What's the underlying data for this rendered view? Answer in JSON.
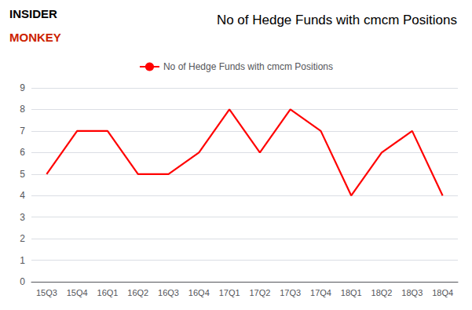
{
  "chart_data": {
    "type": "line",
    "title": "No of Hedge Funds with cmcm Positions",
    "categories": [
      "15Q3",
      "15Q4",
      "16Q1",
      "16Q2",
      "16Q3",
      "16Q4",
      "17Q1",
      "17Q2",
      "17Q3",
      "17Q4",
      "18Q1",
      "18Q2",
      "18Q3",
      "18Q4"
    ],
    "series": [
      {
        "name": "No of Hedge Funds with cmcm Positions",
        "color": "#ff0000",
        "values": [
          5,
          7,
          7,
          5,
          5,
          6,
          8,
          6,
          8,
          7,
          4,
          6,
          7,
          4
        ]
      }
    ],
    "ylim": [
      0,
      9
    ],
    "yticks": [
      0,
      1,
      2,
      3,
      4,
      5,
      6,
      7,
      8,
      9
    ],
    "grid": true,
    "legend": "top",
    "annotations": [
      {
        "text": "INSIDER",
        "color": "#000000"
      },
      {
        "text": "MONKEY",
        "color": "#cc2200"
      }
    ]
  }
}
